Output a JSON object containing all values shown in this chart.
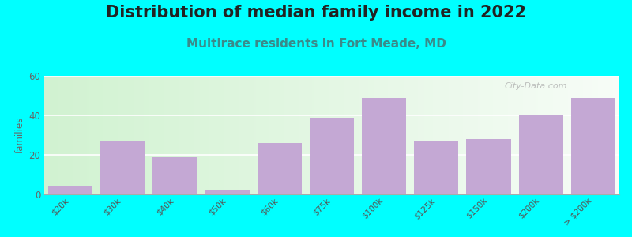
{
  "title": "Distribution of median family income in 2022",
  "subtitle": "Multirace residents in Fort Meade, MD",
  "categories": [
    "$20k",
    "$30k",
    "$40k",
    "$50k",
    "$60k",
    "$75k",
    "$100k",
    "$125k",
    "$150k",
    "$200k",
    "> $200k"
  ],
  "values": [
    4,
    27,
    19,
    2,
    26,
    39,
    49,
    27,
    28,
    40,
    49
  ],
  "bar_color": "#c4a8d4",
  "ylabel": "families",
  "ylim": [
    0,
    60
  ],
  "yticks": [
    0,
    20,
    40,
    60
  ],
  "background_outer": "#00ffff",
  "title_fontsize": 15,
  "subtitle_fontsize": 11,
  "subtitle_color": "#3a8a8a",
  "watermark": "City-Data.com",
  "title_color": "#222222"
}
